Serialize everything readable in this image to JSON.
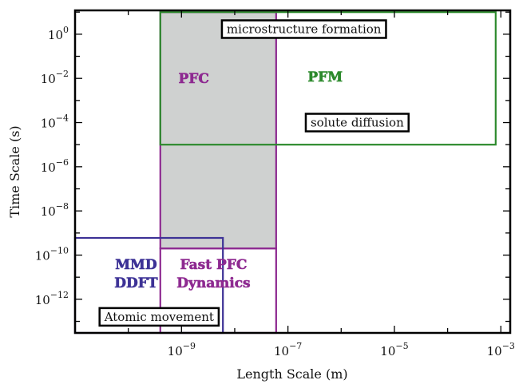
{
  "chart_data": {
    "type": "scatter",
    "xlabel": "Length Scale (m)",
    "ylabel": "Time Scale (s)",
    "x_scale": "log",
    "y_scale": "log",
    "xlim": [
      1e-11,
      0.0015
    ],
    "ylim": [
      3e-14,
      12
    ],
    "x_ticks": [
      1e-09,
      1e-07,
      1e-05,
      0.001
    ],
    "x_tick_labels": [
      "10^-9",
      "10^-7",
      "10^-5",
      "10^-3"
    ],
    "y_ticks": [
      1,
      0.01,
      0.0001,
      1e-06,
      1e-08,
      1e-10,
      1e-12
    ],
    "y_tick_labels": [
      "10^0",
      "10^-2",
      "10^-4",
      "10^-6",
      "10^-8",
      "10^-10",
      "10^-12"
    ],
    "regions": [
      {
        "label": "PFC",
        "color": "#8e2a91",
        "fill": "#cfd1d0",
        "x": [
          4e-10,
          6e-08
        ],
        "y": [
          2e-10,
          10
        ],
        "label_at": [
          1.7e-09,
          0.01
        ]
      },
      {
        "label": "PFM",
        "color": "#2d8a2d",
        "fill": "none",
        "x": [
          4e-10,
          0.0008
        ],
        "y": [
          1e-05,
          10
        ],
        "label_at": [
          5e-07,
          0.012
        ]
      },
      {
        "label": "Fast PFC\nDynamics",
        "color": "#8e2a91",
        "fill": "none",
        "x": [
          4e-10,
          6e-08
        ],
        "y": [
          3e-14,
          2e-10
        ],
        "label_at": [
          4e-09,
          1.5e-11
        ]
      },
      {
        "label": "MMD\nDDFT",
        "color": "#3d3296",
        "fill": "none",
        "x": [
          1e-11,
          6e-09
        ],
        "y": [
          3e-14,
          6e-10
        ],
        "label_at": [
          1.4e-10,
          1.5e-11
        ]
      }
    ],
    "annotations": [
      {
        "text": "microstructure formation",
        "at": [
          2e-07,
          1.7
        ]
      },
      {
        "text": "solute diffusion",
        "at": [
          2e-06,
          0.0001
        ]
      },
      {
        "text": "Atomic movement",
        "at": [
          3.8e-10,
          1.6e-13
        ]
      }
    ]
  }
}
